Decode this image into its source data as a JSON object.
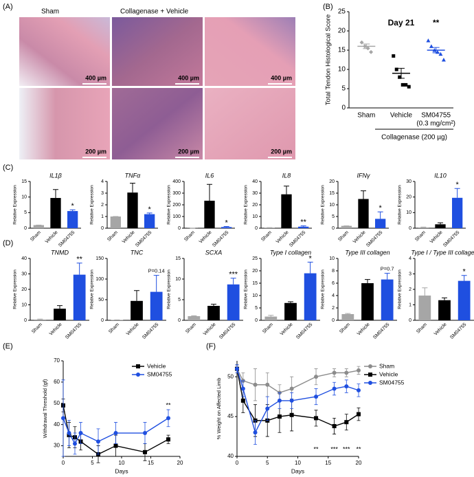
{
  "panel_labels": [
    "(A)",
    "(B)",
    "(C)",
    "(D)",
    "(E)",
    "(F)"
  ],
  "histology": {
    "column_labels": [
      "Sham",
      "Collagenase + Vehicle"
    ],
    "scale_bars": [
      "400 µm",
      "400 µm",
      "400 µm",
      "200 µm",
      "200 µm",
      "200 µm"
    ]
  },
  "chart_data": [
    {
      "type": "dot",
      "title": "Day 21",
      "ylabel": "Total Tendon Histological Score",
      "categories": [
        "Sham",
        "Vehicle",
        "SM04755"
      ],
      "category_sublabels": [
        null,
        null,
        "(0.3 mg/cm²)"
      ],
      "group_label": "Collagenase (200 µg)",
      "points": [
        [
          17,
          16,
          15.5,
          14.5
        ],
        [
          13.5,
          10,
          8,
          6,
          6,
          5.5
        ],
        [
          17.5,
          16,
          15,
          14.5,
          14,
          12.5
        ]
      ],
      "means": [
        16,
        9,
        15
      ],
      "sems": [
        0.6,
        1.3,
        0.7
      ],
      "annotations": [
        null,
        null,
        "**"
      ],
      "colors": [
        "#a6a6a6",
        "#000000",
        "#1f4fe0"
      ],
      "ylim": [
        0,
        25
      ],
      "yticks": [
        0,
        5,
        10,
        15,
        20,
        25
      ]
    },
    {
      "type": "bar",
      "title": "IL1β",
      "ylabel": "Relative Expression",
      "categories": [
        "Sham",
        "Vehicle",
        "SM04755"
      ],
      "values": [
        1,
        9.7,
        5.5
      ],
      "errors": [
        0,
        2.7,
        0.4
      ],
      "annotations": [
        null,
        null,
        "*"
      ],
      "colors": [
        "#a6a6a6",
        "#000000",
        "#1f4fe0"
      ],
      "ylim": [
        0,
        15
      ],
      "yticks": [
        0,
        5,
        10,
        15
      ]
    },
    {
      "type": "bar",
      "title": "TNFα",
      "ylabel": "Relative Expression",
      "categories": [
        "Sham",
        "Vehicle",
        "SM04755"
      ],
      "values": [
        1,
        3.05,
        1.2
      ],
      "errors": [
        0,
        0.8,
        0.1
      ],
      "annotations": [
        null,
        null,
        "*"
      ],
      "colors": [
        "#a6a6a6",
        "#000000",
        "#1f4fe0"
      ],
      "ylim": [
        0,
        4
      ],
      "yticks": [
        0,
        1,
        2,
        3,
        4
      ]
    },
    {
      "type": "bar",
      "title": "IL6",
      "ylabel": "Relative Expression",
      "categories": [
        "Sham",
        "Vehicle",
        "SM04755"
      ],
      "values": [
        1,
        235,
        10
      ],
      "errors": [
        0,
        140,
        5
      ],
      "annotations": [
        null,
        null,
        "*"
      ],
      "colors": [
        "#a6a6a6",
        "#000000",
        "#1f4fe0"
      ],
      "ylim": [
        0,
        400
      ],
      "yticks": [
        0,
        100,
        200,
        300,
        400
      ]
    },
    {
      "type": "bar",
      "title": "IL8",
      "ylabel": "Relative Expression",
      "categories": [
        "Sham",
        "Vehicle",
        "SM04755"
      ],
      "values": [
        0.5,
        29,
        1.3
      ],
      "errors": [
        0,
        7,
        0.7
      ],
      "annotations": [
        null,
        null,
        "**"
      ],
      "colors": [
        "#a6a6a6",
        "#000000",
        "#1f4fe0"
      ],
      "ylim": [
        0,
        40
      ],
      "yticks": [
        0,
        10,
        20,
        30,
        40
      ]
    },
    {
      "type": "bar",
      "title": "IFNγ",
      "ylabel": "Relative Expression",
      "categories": [
        "Sham",
        "Vehicle",
        "SM04755"
      ],
      "values": [
        1,
        12.5,
        4
      ],
      "errors": [
        0,
        3.5,
        3
      ],
      "annotations": [
        null,
        null,
        "*"
      ],
      "colors": [
        "#a6a6a6",
        "#000000",
        "#1f4fe0"
      ],
      "ylim": [
        0,
        20
      ],
      "yticks": [
        0,
        5,
        10,
        15,
        20
      ]
    },
    {
      "type": "bar",
      "title": "IL10",
      "ylabel": "Relative Expression",
      "categories": [
        "Sham",
        "Vehicle",
        "SM04755"
      ],
      "values": [
        0.5,
        2.5,
        19.5
      ],
      "errors": [
        0.2,
        1,
        6
      ],
      "annotations": [
        null,
        null,
        "*"
      ],
      "colors": [
        "#a6a6a6",
        "#000000",
        "#1f4fe0"
      ],
      "ylim": [
        0,
        30
      ],
      "yticks": [
        0,
        10,
        20,
        30
      ]
    },
    {
      "type": "bar",
      "title": "TNMD",
      "ylabel": "Relative Expression",
      "categories": [
        "Sham",
        "Vehicle",
        "SM04755"
      ],
      "values": [
        0.5,
        7.5,
        29.5
      ],
      "errors": [
        0.3,
        2,
        7.5
      ],
      "annotations": [
        null,
        null,
        "**"
      ],
      "colors": [
        "#a6a6a6",
        "#000000",
        "#1f4fe0"
      ],
      "ylim": [
        0,
        40
      ],
      "yticks": [
        0,
        10,
        20,
        30,
        40
      ]
    },
    {
      "type": "bar",
      "title": "TNC",
      "ylabel": "Relative Expression",
      "categories": [
        "Sham",
        "Vehicle",
        "SM04755"
      ],
      "values": [
        1,
        47,
        69
      ],
      "errors": [
        0,
        25,
        40
      ],
      "annotations": [
        null,
        null,
        "P=0.14"
      ],
      "colors": [
        "#a6a6a6",
        "#000000",
        "#1f4fe0"
      ],
      "ylim": [
        0,
        150
      ],
      "yticks": [
        0,
        50,
        100,
        150
      ]
    },
    {
      "type": "bar",
      "title": "SCXA",
      "ylabel": "Relative Expression",
      "categories": [
        "Sham",
        "Vehicle",
        "SM04755"
      ],
      "values": [
        1,
        3.5,
        8.7
      ],
      "errors": [
        0.1,
        0.4,
        1.5
      ],
      "annotations": [
        null,
        null,
        "***"
      ],
      "colors": [
        "#a6a6a6",
        "#000000",
        "#1f4fe0"
      ],
      "ylim": [
        0,
        15
      ],
      "yticks": [
        0,
        5,
        10,
        15
      ]
    },
    {
      "type": "bar",
      "title": "Type I collagen",
      "ylabel": "Relative Expression",
      "categories": [
        "Sham",
        "Vehicle",
        "SM04755"
      ],
      "values": [
        1.5,
        7,
        19
      ],
      "errors": [
        0.5,
        0.5,
        4.5
      ],
      "annotations": [
        null,
        null,
        "*"
      ],
      "colors": [
        "#a6a6a6",
        "#000000",
        "#1f4fe0"
      ],
      "ylim": [
        0,
        25
      ],
      "yticks": [
        0,
        5,
        10,
        15,
        20,
        25
      ]
    },
    {
      "type": "bar",
      "title": "Type III collagen",
      "ylabel": "Relative Expression",
      "categories": [
        "Sham",
        "Vehicle",
        "SM04755"
      ],
      "values": [
        1,
        6,
        6.6
      ],
      "errors": [
        0.1,
        0.6,
        1
      ],
      "annotations": [
        null,
        null,
        "P=0.7"
      ],
      "colors": [
        "#a6a6a6",
        "#000000",
        "#1f4fe0"
      ],
      "ylim": [
        0,
        10
      ],
      "yticks": [
        0,
        2,
        4,
        6,
        8,
        10
      ]
    },
    {
      "type": "bar",
      "title": "Type I / Type III collagen",
      "ylabel": "Relative Expression",
      "categories": [
        "Sham",
        "Vehicle",
        "SM04755"
      ],
      "values": [
        1.6,
        1.3,
        2.55
      ],
      "errors": [
        0.5,
        0.15,
        0.35
      ],
      "annotations": [
        null,
        null,
        "*"
      ],
      "colors": [
        "#a6a6a6",
        "#000000",
        "#1f4fe0"
      ],
      "ylim": [
        0,
        4
      ],
      "yticks": [
        0,
        1,
        2,
        3,
        4
      ]
    },
    {
      "type": "line",
      "xlabel": "Days",
      "ylabel": "Withdrawal Threshold (gf)",
      "x": [
        0,
        1,
        2,
        3,
        6,
        9,
        14,
        18
      ],
      "series": [
        {
          "name": "Vehicle",
          "color": "#000000",
          "marker": "square",
          "values": [
            49,
            35,
            34,
            32,
            26,
            30,
            27,
            33
          ],
          "errors": [
            3,
            6,
            5,
            4,
            4,
            5,
            4,
            2
          ]
        },
        {
          "name": "SM04755",
          "color": "#1f4fe0",
          "marker": "circle",
          "values": [
            43,
            36,
            31,
            36,
            32,
            36,
            36,
            43
          ],
          "errors": [
            18,
            6,
            5,
            5,
            6,
            5,
            5,
            4
          ]
        }
      ],
      "annotations": [
        {
          "x": 18,
          "text": "**"
        }
      ],
      "legend": "upper right",
      "xlim": [
        0,
        20
      ],
      "xticks": [
        0,
        5,
        10,
        15,
        20
      ],
      "ylim": [
        25,
        70
      ],
      "yticks": [
        30,
        40,
        50,
        60,
        70
      ]
    },
    {
      "type": "line",
      "xlabel": "Days",
      "ylabel": "% Weight on Affected Limb",
      "x": [
        0,
        1,
        3,
        5,
        7,
        9,
        13,
        16,
        18,
        20
      ],
      "series": [
        {
          "name": "Sham",
          "color": "#8c8c8c",
          "marker": "circle",
          "values": [
            51,
            49.5,
            49,
            49,
            48,
            48.5,
            50,
            50.5,
            50.5,
            50.8
          ],
          "errors": [
            0.5,
            1,
            2,
            1.5,
            1,
            1.5,
            1,
            0.5,
            0.5,
            0.5
          ]
        },
        {
          "name": "Vehicle",
          "color": "#000000",
          "marker": "square",
          "values": [
            51,
            47,
            44.5,
            44.5,
            45,
            45.2,
            44.8,
            43.8,
            44.3,
            45.3
          ],
          "errors": [
            0.5,
            1.5,
            2,
            2,
            2,
            2,
            1,
            1,
            1,
            0.8
          ]
        },
        {
          "name": "SM04755",
          "color": "#1f4fe0",
          "marker": "circle",
          "values": [
            51,
            48.5,
            43,
            46,
            47,
            47,
            47.5,
            48.5,
            48.8,
            48.3
          ],
          "errors": [
            0.5,
            1,
            1.5,
            1.5,
            1,
            1,
            1,
            0.8,
            0.8,
            0.8
          ]
        }
      ],
      "annotations": [
        {
          "x": 13,
          "text": "**"
        },
        {
          "x": 16,
          "text": "***"
        },
        {
          "x": 18,
          "text": "***"
        },
        {
          "x": 20,
          "text": "**"
        }
      ],
      "legend": "upper right",
      "xlim": [
        0,
        20
      ],
      "xticks": [
        0,
        5,
        10,
        15,
        20
      ],
      "ylim": [
        40,
        52
      ],
      "yticks": [
        40,
        45,
        50
      ]
    }
  ]
}
